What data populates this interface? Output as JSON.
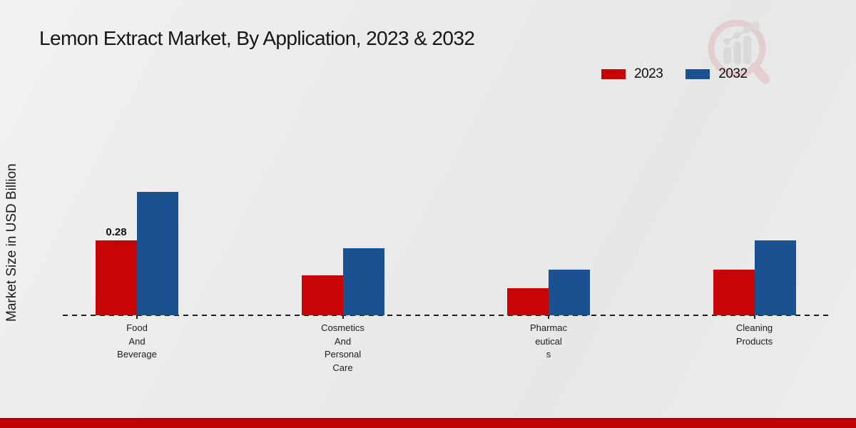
{
  "chart_data": {
    "type": "bar",
    "title": "Lemon Extract Market, By Application, 2023 & 2032",
    "xlabel": "",
    "ylabel": "Market Size in USD Billion",
    "categories": [
      "Food And Beverage",
      "Cosmetics And Personal Care",
      "Pharmaceuticals",
      "Cleaning Products"
    ],
    "category_label_lines": [
      [
        "Food",
        "And",
        "Beverage"
      ],
      [
        "Cosmetics",
        "And",
        "Personal",
        "Care"
      ],
      [
        "Pharmac",
        "eutical",
        "s"
      ],
      [
        "Cleaning",
        "Products"
      ]
    ],
    "series": [
      {
        "name": "2023",
        "color": "#c80505",
        "values": [
          0.28,
          0.15,
          0.1,
          0.17
        ]
      },
      {
        "name": "2032",
        "color": "#1a5191",
        "values": [
          0.46,
          0.25,
          0.17,
          0.28
        ]
      }
    ],
    "annotations": [
      {
        "series_index": 0,
        "category_index": 0,
        "text": "0.28"
      }
    ],
    "ylim": [
      0,
      0.5
    ],
    "grid": false,
    "legend_position": "top-right",
    "baseline_style": "dashed"
  },
  "icons": {
    "watermark": "magnifier-bar-chart-logo"
  },
  "colors": {
    "series_2023": "#c80505",
    "series_2032": "#1a5191",
    "footer_band": "#bf0303",
    "background": "#ebebeb"
  }
}
